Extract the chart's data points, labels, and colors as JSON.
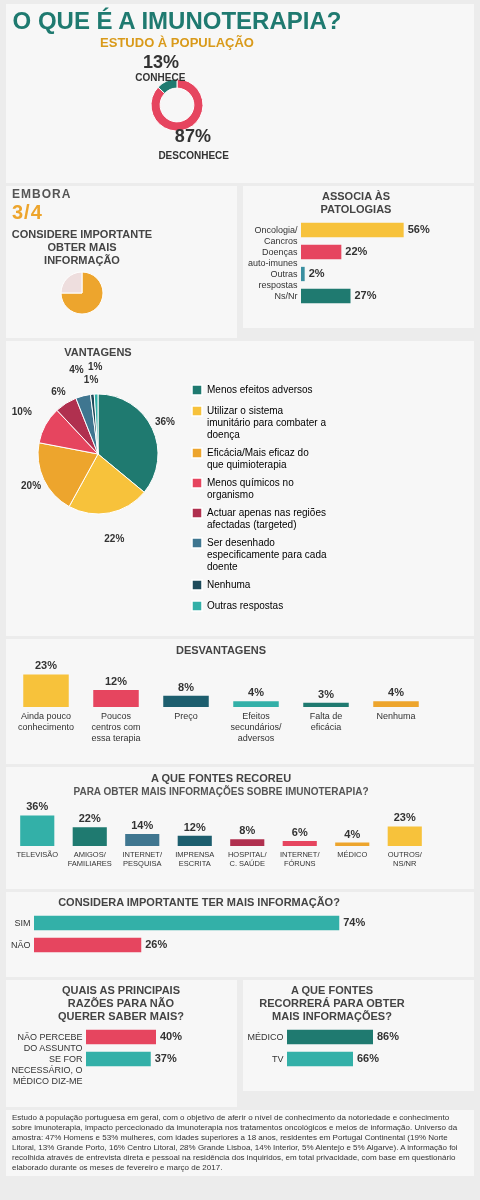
{
  "chart_data": [
    {
      "type": "donut",
      "title": "O QUE É A IMUNOTERAPIA?",
      "subtitle": "ESTUDO À POPULAÇÃO",
      "categories": [
        "DESCONHECE",
        "CONHECE"
      ],
      "values": [
        87,
        13
      ],
      "value_labels": [
        "87%",
        "13%"
      ],
      "colors": [
        "#e6455f",
        "#1f7a70"
      ],
      "legend": false
    },
    {
      "type": "pie",
      "title": "CONSIDERE IMPORTANTE OBTER MAIS INFORMAÇÃO",
      "annotations": [
        "EMBORA",
        "3/4"
      ],
      "categories": [
        null,
        null
      ],
      "values": [
        75,
        25
      ],
      "colors": [
        "#eda52d",
        "#eedede"
      ],
      "legend": false
    },
    {
      "type": "bar",
      "orientation": "horizontal",
      "title": "ASSOCIA ÀS PATOLOGIAS",
      "categories": [
        "Oncologia/Cancros",
        "Doenças auto-imunes",
        "Outras respostas",
        "Ns/Nr"
      ],
      "values": [
        56,
        22,
        2,
        27
      ],
      "value_labels": [
        "56%",
        "22%",
        "2%",
        "27%"
      ],
      "colors": [
        "#f7c23b",
        "#e6455f",
        "#3a8fa0",
        "#1f7a70"
      ],
      "tick_labels": "y"
    },
    {
      "type": "pie",
      "title": "VANTAGENS",
      "categories": [
        "Menos efeitos adversos",
        "Utilizar o sistema imunitário para combater a doença",
        "Eficácia/Mais eficaz do que quimioterapia",
        "Menos químicos no organismo",
        "Actuar apenas nas regiões afectadas (targeted)",
        "Ser desenhado especificamente para cada doente",
        "Nenhuma",
        "Outras respostas"
      ],
      "values": [
        36,
        22,
        20,
        10,
        6,
        4,
        1,
        1
      ],
      "value_labels": [
        "36%",
        "22%",
        "20%",
        "10%",
        "6%",
        "4%",
        "1%",
        "1%"
      ],
      "colors": [
        "#1f7a70",
        "#f7c23b",
        "#eda52d",
        "#e6455f",
        "#b0304f",
        "#3f7690",
        "#1d4a5a",
        "#33b0a8"
      ],
      "legend": "right"
    },
    {
      "type": "bar",
      "title": "DESVANTAGENS",
      "categories": [
        "Ainda pouco conhecimento",
        "Poucos centros com essa terapia",
        "Preço",
        "Efeitos secundários/ adversos",
        "Falta de eficácia",
        "Nenhuma"
      ],
      "values": [
        23,
        12,
        8,
        4,
        3,
        4
      ],
      "value_labels": [
        "23%",
        "12%",
        "8%",
        "4%",
        "3%",
        "4%"
      ],
      "colors": [
        "#f7c23b",
        "#e6455f",
        "#1d5e6e",
        "#33b0a8",
        "#1f7a70",
        "#eda52d"
      ],
      "tick_labels": "x"
    },
    {
      "type": "bar",
      "title": "A QUE FONTES RECOREU",
      "subtitle": "PARA OBTER MAIS INFORMAÇÕES SOBRE IMUNOTERAPIA?",
      "categories": [
        "TELEVISÃO",
        "AMIGOS/ FAMILIARES",
        "INTERNET/ PESQUISA",
        "IMPRENSA ESCRITA",
        "HOSPITAL/ C. SAÚDE",
        "INTERNET/ FÓRUNS",
        "MÉDICO",
        "OUTROS/ NS/NR"
      ],
      "values": [
        36,
        22,
        14,
        12,
        8,
        6,
        4,
        23
      ],
      "value_labels": [
        "36%",
        "22%",
        "14%",
        "12%",
        "8%",
        "6%",
        "4%",
        "23%"
      ],
      "colors": [
        "#33b0a8",
        "#1f7a70",
        "#3f7690",
        "#1d5e6e",
        "#b0304f",
        "#e6455f",
        "#eda52d",
        "#f7c23b"
      ],
      "tick_labels": "x"
    },
    {
      "type": "bar",
      "orientation": "horizontal",
      "title": "CONSIDERA IMPORTANTE TER MAIS INFORMAÇÃO?",
      "categories": [
        "SIM",
        "NÃO"
      ],
      "values": [
        74,
        26
      ],
      "value_labels": [
        "74%",
        "26%"
      ],
      "colors": [
        "#33b0a8",
        "#e6455f"
      ],
      "tick_labels": "y"
    },
    {
      "type": "bar",
      "orientation": "horizontal",
      "title": "QUAIS AS PRINCIPAIS RAZÕES PARA NÃO QUERER SABER MAIS?",
      "categories": [
        "NÃO PERCEBE DO ASSUNTO",
        "SE FOR NECESSÁRIO, O MÉDICO DIZ-ME"
      ],
      "values": [
        40,
        37
      ],
      "value_labels": [
        "40%",
        "37%"
      ],
      "colors": [
        "#e6455f",
        "#33b0a8"
      ],
      "tick_labels": "y"
    },
    {
      "type": "bar",
      "orientation": "horizontal",
      "title": "A QUE FONTES RECORRERÁ PARA OBTER MAIS INFORMAÇÕES?",
      "categories": [
        "MÉDICO",
        "TV"
      ],
      "values": [
        86,
        66
      ],
      "value_labels": [
        "86%",
        "66%"
      ],
      "colors": [
        "#1f7a70",
        "#33b0a8"
      ],
      "tick_labels": "y"
    },
    {
      "type": "other",
      "annotations": [
        "Estudo à população portuguesa em geral, com o objetivo de aferir o nível de conhecimento da notoriedade e conhecimento sobre imunoterapia, impacto percecionado da imunoterapia nos tratamentos oncológicos e meios de informação. Universo da amostra: 47% Homens e 53% mulheres, com idades superiores a 18 anos, residentes em Portugal Continental (19% Norte Litoral, 13% Grande Porto, 16% Centro Litoral, 28% Grande Lisboa, 14% Interior, 5% Alentejo e 5% Algarve). A informação foi recolhida através de entrevista direta e pessoal na residência dos inquiridos, em total privacidade, com base em questionário elaborado durante os meses de fevereiro e março de 2017."
      ]
    }
  ]
}
